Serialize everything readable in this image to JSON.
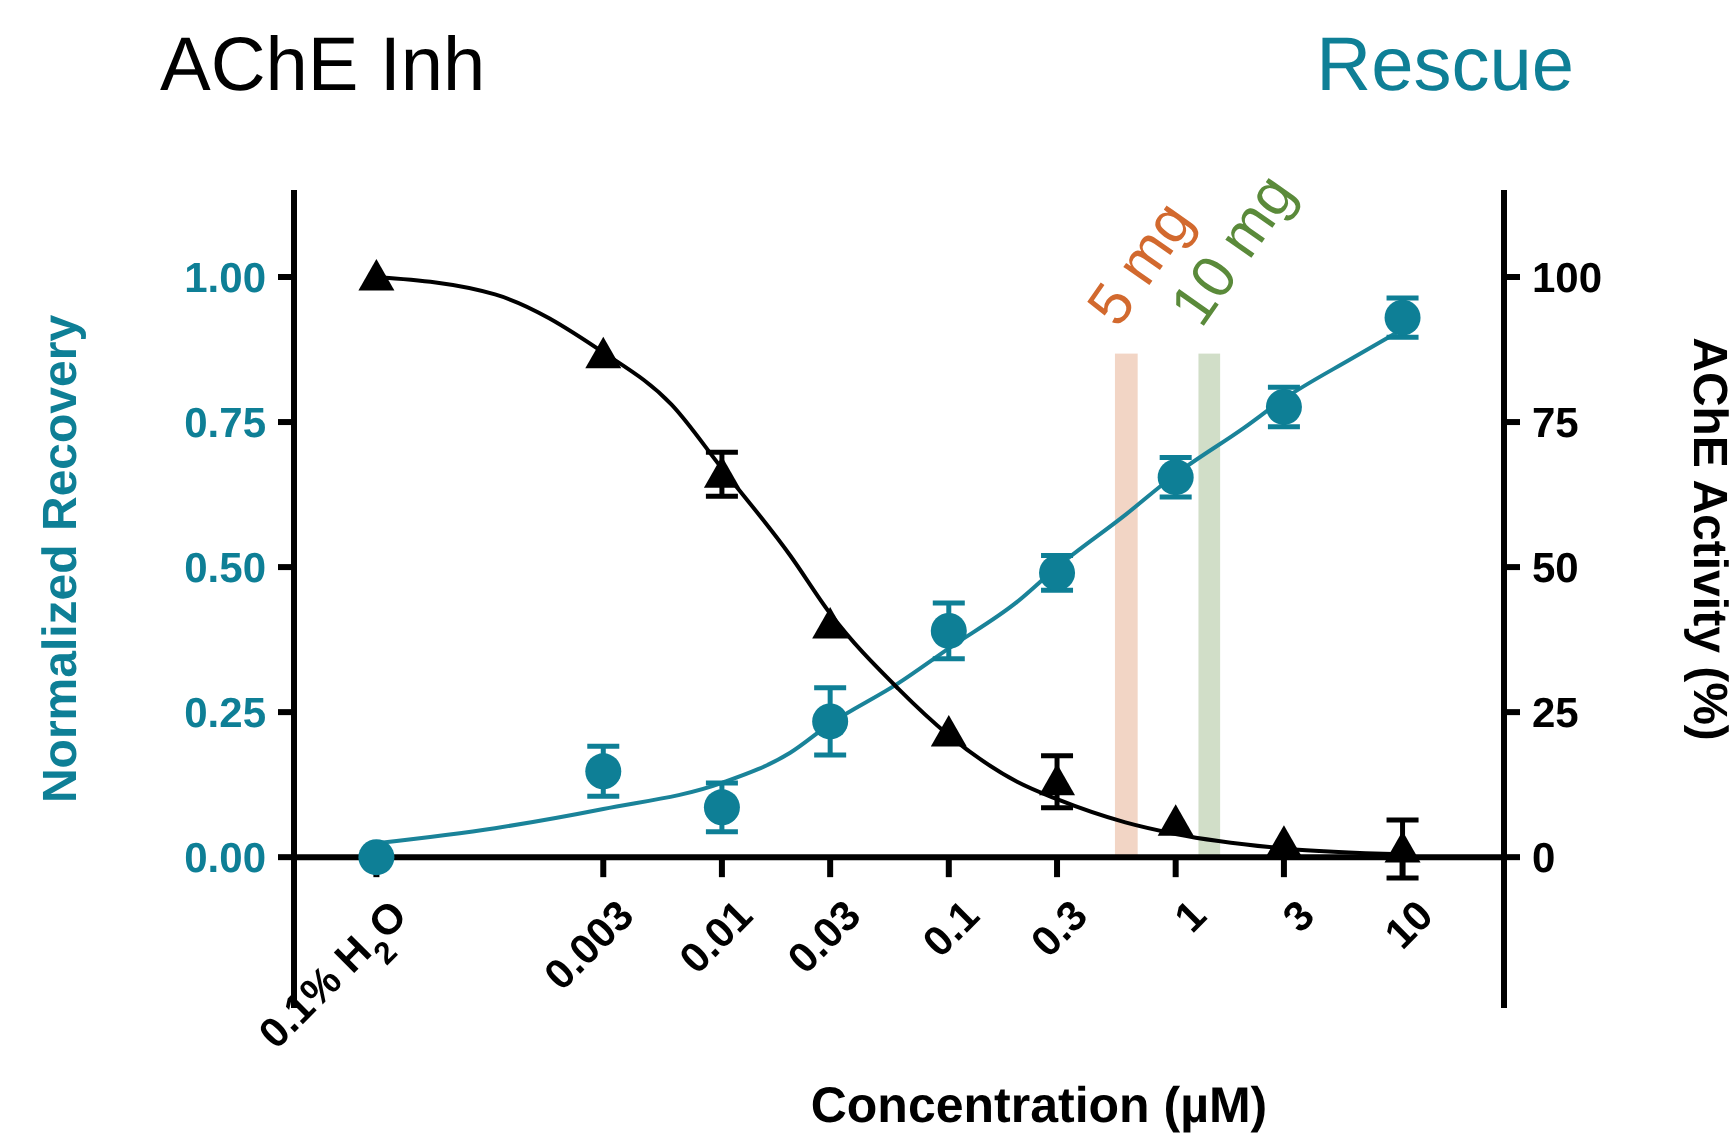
{
  "chart_data": {
    "type": "scatter",
    "xlabel": "Concentration (µM)",
    "ylabel": "Normalized Recovery",
    "y2label": "AChE Activity (%)",
    "log": "x",
    "xlim": [
      0.00013,
      28
    ],
    "xticks": [
      {
        "value": 0.0003,
        "label": "0.1% H$_{2}$O"
      },
      0.003,
      0.01,
      0.03,
      0.1,
      0.3,
      1,
      3,
      10
    ],
    "ylim": [
      -0.26,
      1.15
    ],
    "yticks": [
      {
        "value": 0,
        "label": "0.00"
      },
      0.25,
      {
        "value": 0.5,
        "label": "0.50"
      },
      0.75,
      {
        "value": 1,
        "label": "1.00"
      }
    ],
    "y2lim": [
      -26,
      115
    ],
    "y2ticks": [
      0,
      25,
      50,
      75,
      100
    ],
    "bands": [
      {
        "axis": "x",
        "from": 0.54,
        "to": 0.68,
        "label": "5 mg",
        "color": "#d2692e"
      },
      {
        "axis": "x",
        "from": 1.26,
        "to": 1.57,
        "label": "10 mg",
        "color": "#5a8a3a"
      }
    ],
    "series": [
      {
        "type": "line",
        "color": "#1a8399",
        "x": [
          0.0003,
          0.001,
          0.003,
          0.01,
          0.02,
          0.03,
          0.06,
          0.1,
          0.2,
          0.3,
          0.6,
          1,
          2,
          3,
          6,
          10
        ],
        "values": [
          0.024,
          0.05,
          0.083,
          0.128,
          0.18,
          0.23,
          0.3,
          0.36,
          0.44,
          0.5,
          0.59,
          0.66,
          0.74,
          0.79,
          0.86,
          0.91
        ]
      },
      {
        "type": "line",
        "color": "#000000",
        "axis": "y2",
        "x": [
          0.0003,
          0.001,
          0.003,
          0.006,
          0.01,
          0.02,
          0.03,
          0.06,
          0.1,
          0.2,
          0.3,
          0.6,
          1,
          3,
          10
        ],
        "values": [
          100,
          97,
          87,
          78,
          67,
          52,
          42,
          29,
          21,
          13,
          10,
          6,
          4,
          1.5,
          0.5
        ]
      },
      {
        "name": "Rescue",
        "color": "#0e7f96",
        "marker": "circle",
        "x": [
          0.0003,
          0.003,
          0.01,
          0.03,
          0.1,
          0.3,
          1,
          3,
          10
        ],
        "values": [
          0,
          0.148,
          0.086,
          0.234,
          0.39,
          0.49,
          0.655,
          0.776,
          0.93
        ],
        "errors": [
          null,
          0.043,
          0.042,
          0.058,
          0.048,
          0.03,
          0.034,
          0.034,
          0.034
        ]
      },
      {
        "name": "AChE Inh",
        "color": "#000000",
        "marker": "triangle",
        "axis": "y2",
        "x": [
          0.0003,
          0.003,
          0.01,
          0.03,
          0.1,
          0.3,
          1,
          3,
          10
        ],
        "values": [
          100,
          86.6,
          66,
          40,
          21.4,
          13,
          6,
          2.4,
          1.4
        ],
        "errors": [
          null,
          null,
          3.8,
          null,
          null,
          4.5,
          null,
          null,
          5
        ]
      }
    ]
  }
}
